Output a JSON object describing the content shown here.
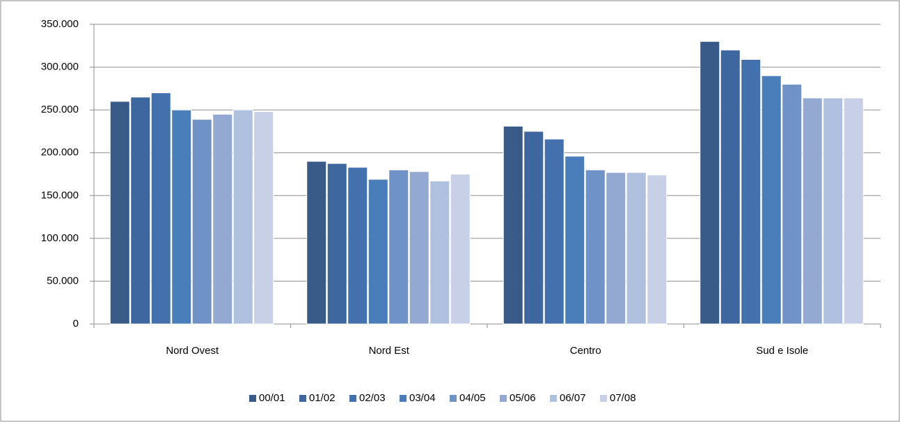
{
  "chart_data": {
    "type": "bar",
    "categories": [
      "Nord Ovest",
      "Nord Est",
      "Centro",
      "Sud e Isole"
    ],
    "series": [
      {
        "name": "00/01",
        "color": "#375a87",
        "values": [
          260000,
          190000,
          231000,
          330000
        ]
      },
      {
        "name": "01/02",
        "color": "#3e67a0",
        "values": [
          265000,
          187500,
          225000,
          320000
        ]
      },
      {
        "name": "02/03",
        "color": "#4371ad",
        "values": [
          270000,
          183000,
          216000,
          309000
        ]
      },
      {
        "name": "03/04",
        "color": "#4a7ebb",
        "values": [
          250000,
          169000,
          196000,
          290000
        ]
      },
      {
        "name": "04/05",
        "color": "#6f93c7",
        "values": [
          239000,
          180000,
          180000,
          280000
        ]
      },
      {
        "name": "05/06",
        "color": "#93a9d1",
        "values": [
          245000,
          178000,
          177000,
          264000
        ]
      },
      {
        "name": "06/07",
        "color": "#afbfde",
        "values": [
          250000,
          167000,
          177000,
          264000
        ]
      },
      {
        "name": "07/08",
        "color": "#c7d0e6",
        "values": [
          248000,
          175000,
          174000,
          264000
        ]
      }
    ],
    "ylim": [
      0,
      350000
    ],
    "yticks": [
      0,
      {
        "value": 50000,
        "label": "50.000"
      },
      {
        "value": 100000,
        "label": "100.000"
      },
      {
        "value": 150000,
        "label": "150.000"
      },
      {
        "value": 200000,
        "label": "200.000"
      },
      {
        "value": 250000,
        "label": "250.000"
      },
      {
        "value": 300000,
        "label": "300.000"
      },
      {
        "value": 350000,
        "label": "350.000"
      }
    ],
    "grid": true,
    "legend": "bottom"
  }
}
